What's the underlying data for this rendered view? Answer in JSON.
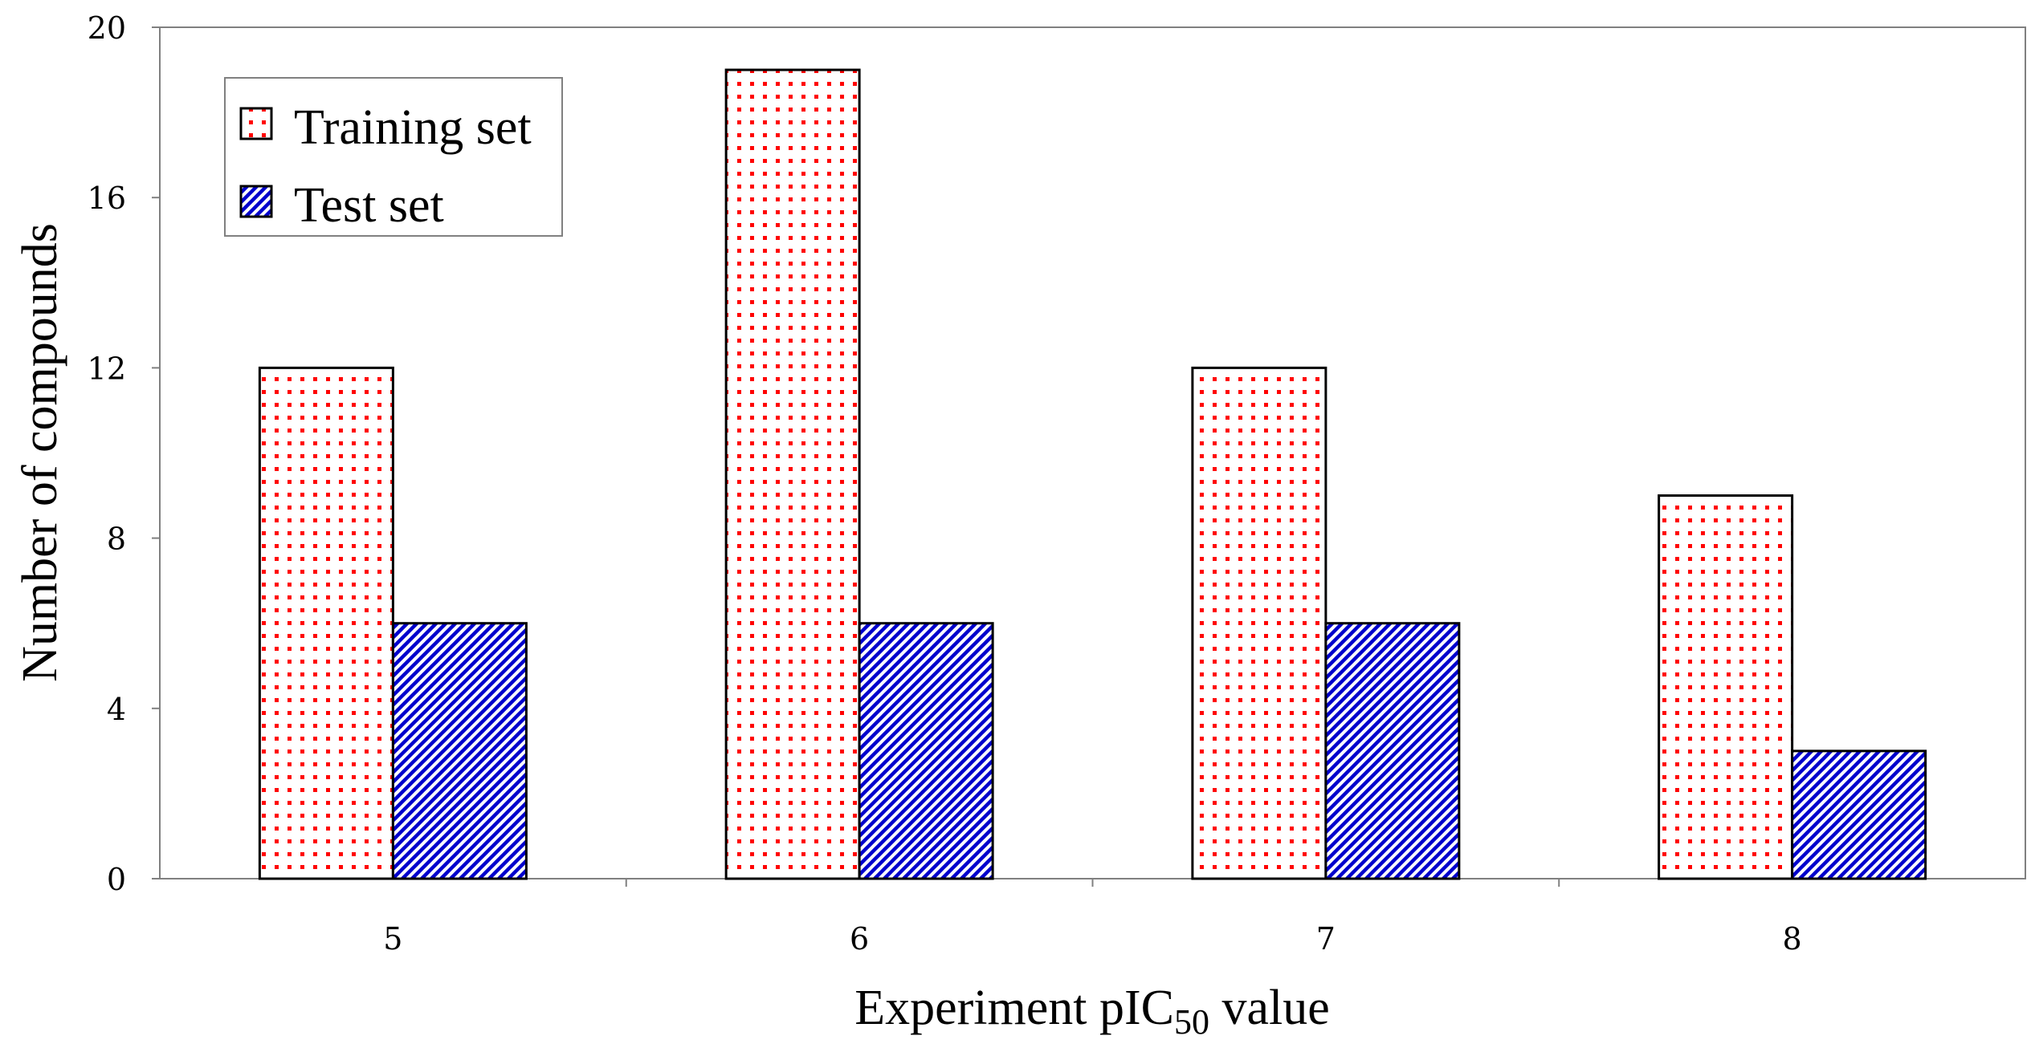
{
  "chart_data": {
    "type": "bar",
    "categories": [
      "5",
      "6",
      "7",
      "8"
    ],
    "series": [
      {
        "name": "Training set",
        "values": [
          12,
          19,
          12,
          9
        ],
        "color": "#ff0000",
        "pattern": "dots"
      },
      {
        "name": "Test set",
        "values": [
          6,
          6,
          6,
          3
        ],
        "color": "#0000cc",
        "pattern": "diagonal-hatch"
      }
    ],
    "yticks": [
      "0",
      "4",
      "8",
      "12",
      "16",
      "20"
    ],
    "ylim": [
      0,
      20
    ],
    "xlabel_main": "Experiment pIC",
    "xlabel_sub": "50",
    "xlabel_tail": " value",
    "ylabel": "Number of compounds",
    "legend_position": "top-left",
    "grid": false
  }
}
